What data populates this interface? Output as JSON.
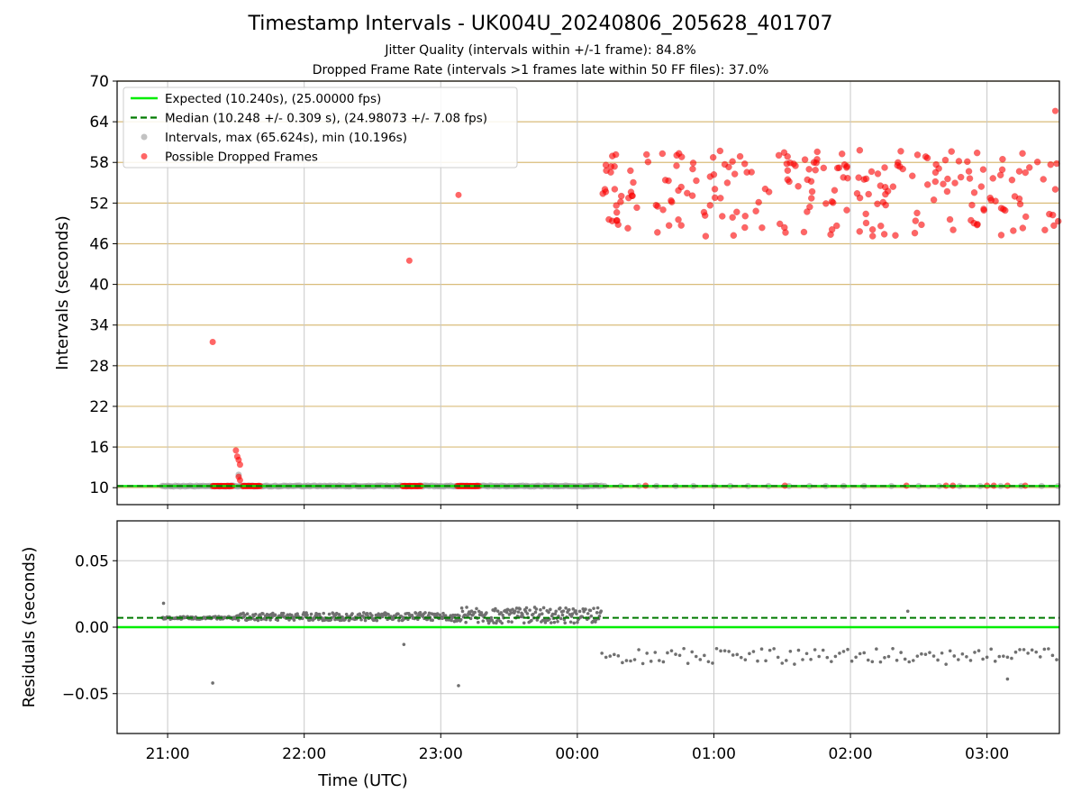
{
  "figure": {
    "title": "Timestamp Intervals - UK004U_20240806_205628_401707",
    "subtitle_1": "Jitter Quality (intervals within +/-1 frame): 84.8%",
    "subtitle_2": "Dropped Frame Rate (intervals >1 frames late within 50 FF files): 37.0%"
  },
  "colors": {
    "expected": "#00ee00",
    "median": "#007a00",
    "interval_points": "#9a9a9a",
    "dropped_points": "#ff0000",
    "residual_points": "#707070",
    "gridline_h": "#d9bc7a",
    "gridline_v": "#c8c8c8"
  },
  "chart_data": [
    {
      "type": "scatter",
      "panel": "top",
      "xlabel": "",
      "ylabel": "Intervals (seconds)",
      "x_unit": "hours since 20:00 UTC on the 6th (ticks printed as HH:MM)",
      "xlim": [
        20.63,
        27.53
      ],
      "ylim": [
        7.5,
        70
      ],
      "y_ticks": [
        10,
        16,
        22,
        28,
        34,
        40,
        46,
        52,
        58,
        64,
        70
      ],
      "x_ticks": [
        "21:00",
        "22:00",
        "23:00",
        "00:00",
        "01:00",
        "02:00",
        "03:00"
      ],
      "grid_horizontal": true,
      "grid_vertical": true,
      "legend_position": "upper-left",
      "legend": [
        {
          "label": "Expected (10.240s), (25.00000 fps)",
          "style": "line-solid",
          "color_key": "expected"
        },
        {
          "label": "Median (10.248 +/- 0.309 s), (24.98073 +/- 7.08 fps)",
          "style": "line-dashed",
          "color_key": "median"
        },
        {
          "label": "Intervals, max (65.624s), min (10.196s)",
          "style": "marker",
          "color_key": "interval_points"
        },
        {
          "label": "Possible Dropped Frames",
          "style": "marker",
          "color_key": "dropped_points"
        }
      ],
      "expected_value": 10.24,
      "median_value": 10.248,
      "interval_band": {
        "x_start": 20.96,
        "x_end": 24.18,
        "y": 10.24
      },
      "sparse_interval_points_x": [
        24.2,
        24.32,
        24.45,
        24.58,
        24.72,
        24.85,
        25.0,
        25.12,
        25.25,
        25.4,
        25.55,
        25.7,
        25.82,
        25.95,
        26.1,
        26.3,
        26.5,
        26.65,
        26.8,
        26.95,
        27.1,
        27.25,
        27.4,
        27.52
      ],
      "dropped_clusters": [
        {
          "x_start": 21.33,
          "x_end": 21.48,
          "y": 10.24
        },
        {
          "x_start": 21.55,
          "x_end": 21.68,
          "y": 10.24
        },
        {
          "x_start": 22.72,
          "x_end": 22.86,
          "y": 10.24
        },
        {
          "x_start": 23.12,
          "x_end": 23.28,
          "y": 10.24
        }
      ],
      "dropped_points": [
        {
          "x": 21.33,
          "y": 31.5
        },
        {
          "x": 21.5,
          "y": 15.5
        },
        {
          "x": 21.51,
          "y": 14.6
        },
        {
          "x": 21.52,
          "y": 14.1
        },
        {
          "x": 21.53,
          "y": 13.4
        },
        {
          "x": 21.52,
          "y": 11.6
        },
        {
          "x": 21.53,
          "y": 11.1
        },
        {
          "x": 22.77,
          "y": 43.5
        },
        {
          "x": 23.13,
          "y": 53.2
        },
        {
          "x": 24.5,
          "y": 10.3
        },
        {
          "x": 25.52,
          "y": 10.3
        },
        {
          "x": 26.41,
          "y": 10.3
        },
        {
          "x": 26.7,
          "y": 10.3
        },
        {
          "x": 26.75,
          "y": 10.3
        },
        {
          "x": 27.0,
          "y": 10.3
        },
        {
          "x": 27.05,
          "y": 10.3
        },
        {
          "x": 27.15,
          "y": 10.3
        },
        {
          "x": 27.28,
          "y": 10.3
        }
      ],
      "dropped_points_cloud": {
        "x_start": 24.18,
        "x_end": 27.53,
        "y_min": 45.5,
        "y_max": 65.6
      },
      "annotation": "dense band of interval points near 10.24 s with dropped-frame clusters; after 00:10 intervals split between 10.24 s and ~46-63 s"
    },
    {
      "type": "scatter",
      "panel": "bottom",
      "xlabel": "Time (UTC)",
      "ylabel": "Residuals (seconds)",
      "xlim": [
        20.63,
        27.53
      ],
      "ylim": [
        -0.08,
        0.08
      ],
      "y_ticks": [
        0.05,
        0.0,
        -0.05
      ],
      "y_tick_labels": [
        "0.05",
        "0.00",
        "−0.05"
      ],
      "x_ticks": [
        "21:00",
        "22:00",
        "23:00",
        "00:00",
        "01:00",
        "02:00",
        "03:00"
      ],
      "grid_horizontal": true,
      "grid_vertical": true,
      "expected_value": 0.0,
      "median_value": 0.007,
      "segments": [
        {
          "x_start": 20.96,
          "x_end": 21.5,
          "y_center": 0.007,
          "y_spread": 0.002
        },
        {
          "x_start": 21.5,
          "x_end": 23.1,
          "y_center": 0.008,
          "y_spread": 0.006
        },
        {
          "x_start": 23.1,
          "x_end": 24.18,
          "y_center": 0.009,
          "y_spread": 0.012
        },
        {
          "x_start": 24.18,
          "x_end": 27.53,
          "y_center": -0.022,
          "y_spread": 0.012
        }
      ],
      "outliers": [
        {
          "x": 20.97,
          "y": 0.018
        },
        {
          "x": 21.33,
          "y": -0.042
        },
        {
          "x": 22.73,
          "y": -0.013
        },
        {
          "x": 23.13,
          "y": -0.044
        },
        {
          "x": 26.42,
          "y": 0.012
        },
        {
          "x": 27.15,
          "y": -0.039
        }
      ]
    }
  ]
}
